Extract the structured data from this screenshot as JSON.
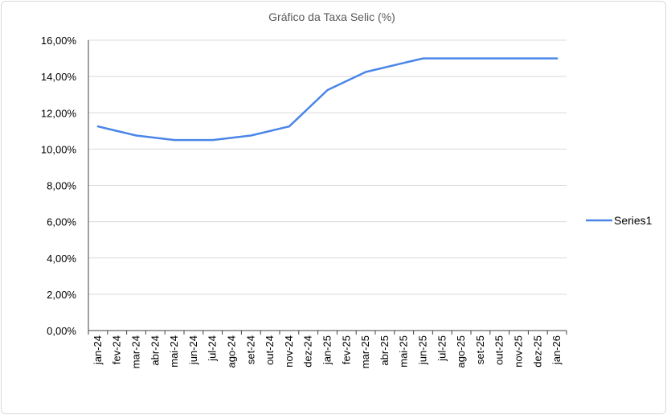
{
  "chart_data": {
    "type": "line",
    "title": "Gráfico da Taxa Selic (%)",
    "xlabel": "",
    "ylabel": "",
    "ylim": [
      0,
      16
    ],
    "y_tick_labels": [
      "0,00%",
      "2,00%",
      "4,00%",
      "6,00%",
      "8,00%",
      "10,00%",
      "12,00%",
      "14,00%",
      "16,00%"
    ],
    "grid": true,
    "legend_position": "right",
    "categories": [
      "jan-24",
      "fev-24",
      "mar-24",
      "abr-24",
      "mai-24",
      "jun-24",
      "jul-24",
      "ago-24",
      "set-24",
      "out-24",
      "nov-24",
      "dez-24",
      "jan-25",
      "fev-25",
      "mar-25",
      "abr-25",
      "mai-25",
      "jun-25",
      "jul-25",
      "ago-25",
      "set-25",
      "out-25",
      "nov-25",
      "dez-25",
      "jan-26"
    ],
    "series": [
      {
        "name": "Series1",
        "color": "#4a86e8",
        "values": [
          11.25,
          null,
          10.75,
          null,
          10.5,
          10.5,
          10.5,
          null,
          10.75,
          null,
          11.25,
          null,
          13.25,
          null,
          14.25,
          null,
          14.75,
          15.0,
          15.0,
          15.0,
          15.0,
          15.0,
          15.0,
          15.0,
          15.0
        ]
      }
    ]
  }
}
